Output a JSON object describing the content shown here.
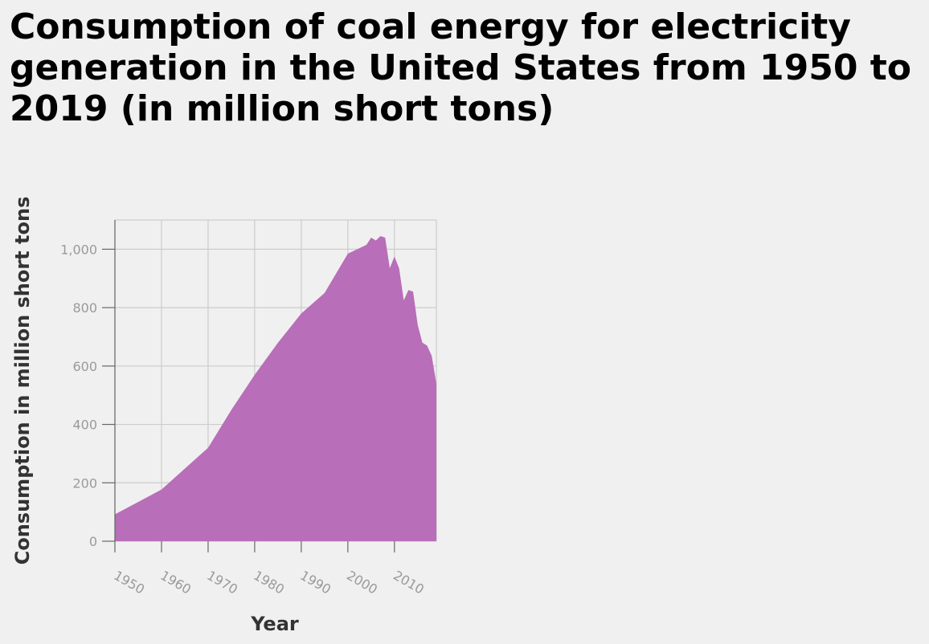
{
  "chart_data": {
    "type": "area",
    "title": "Consumption of coal energy for electricity generation in the United States from 1950 to 2019 (in million short tons)",
    "xlabel": "Year",
    "ylabel": "Consumption in million short tons",
    "xlim": [
      1950,
      2019
    ],
    "ylim": [
      0,
      1100
    ],
    "x_ticks": [
      1950,
      1960,
      1970,
      1980,
      1990,
      2000,
      2010
    ],
    "y_ticks": [
      0,
      200,
      400,
      600,
      800,
      1000
    ],
    "y_tick_labels": [
      "0",
      "200",
      "400",
      "600",
      "800",
      "1,000"
    ],
    "grid": true,
    "fill_color": "#b86eb8",
    "series": [
      {
        "x": [
          1950,
          1960,
          1970,
          1975,
          1980,
          1985,
          1990,
          1995,
          2000,
          2004,
          2005,
          2006,
          2007,
          2008,
          2009,
          2010,
          2011,
          2012,
          2013,
          2014,
          2015,
          2016,
          2017,
          2018,
          2019
        ],
        "values": [
          92,
          177,
          320,
          450,
          570,
          680,
          780,
          850,
          985,
          1015,
          1040,
          1030,
          1045,
          1040,
          935,
          975,
          935,
          825,
          860,
          855,
          740,
          680,
          670,
          635,
          540
        ]
      }
    ]
  }
}
